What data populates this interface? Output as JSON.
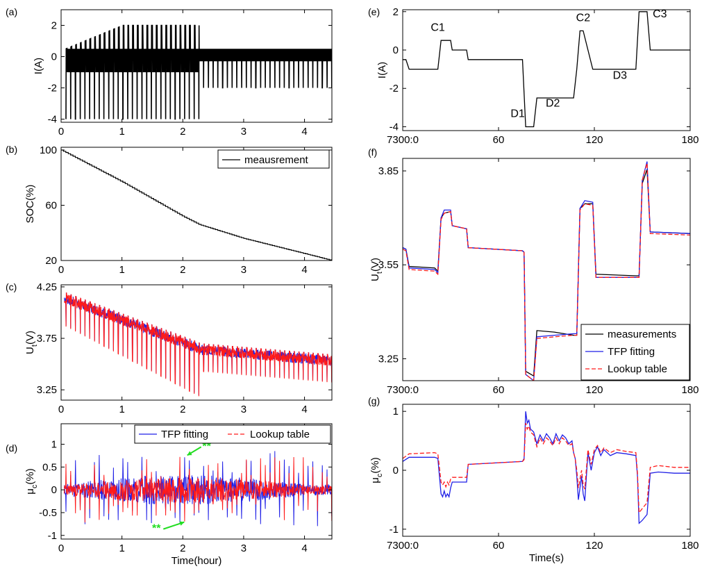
{
  "colors": {
    "measurement": "#000000",
    "tfp": "#1f1fe6",
    "lookup": "#ff1a1a",
    "annotation": "#22dd22"
  },
  "chart_data": [
    {
      "id": "a",
      "panel_label": "(a)",
      "type": "line",
      "ylabel": "I(A)",
      "xlabel": "",
      "xlim": [
        0,
        4.45
      ],
      "ylim": [
        -4.2,
        3
      ],
      "xticks": [
        0,
        1,
        2,
        3,
        4
      ],
      "xtick_labels": [
        "0",
        "1",
        "2",
        "3",
        "4"
      ],
      "yticks": [
        -4,
        -2,
        0,
        2
      ],
      "ytick_labels": [
        "-4",
        "-2",
        "0",
        "2"
      ],
      "pulse_params": {
        "phase1_end_hour": 2.27,
        "discharge_peak_A": -4,
        "charge_peak_A": [
          0.5,
          2
        ],
        "base_A": [
          -1,
          0.5
        ],
        "phase2_discharge_A": -2,
        "phase2_charge_A": [
          0,
          0.5
        ]
      },
      "series": [
        {
          "name": "",
          "color_key": "measurement"
        }
      ]
    },
    {
      "id": "b",
      "panel_label": "(b)",
      "type": "line",
      "ylabel": "SOC(%)",
      "xlabel": "",
      "xlim": [
        0,
        4.45
      ],
      "ylim": [
        20,
        102
      ],
      "xticks": [
        0,
        1,
        2,
        3,
        4
      ],
      "xtick_labels": [
        "0",
        "1",
        "2",
        "3",
        "4"
      ],
      "yticks": [
        20,
        60,
        100
      ],
      "ytick_labels": [
        "20",
        "60",
        "100"
      ],
      "legend": {
        "position": "top-right",
        "entries": [
          "meausrement"
        ]
      },
      "series": [
        {
          "name": "meausrement",
          "color_key": "measurement",
          "x": [
            0,
            1.0,
            2.0,
            2.27,
            3.0,
            4.0,
            4.45
          ],
          "y": [
            100,
            77,
            52,
            46,
            36,
            25,
            20
          ]
        }
      ]
    },
    {
      "id": "c",
      "panel_label": "(c)",
      "type": "line",
      "ylabel": "U",
      "ylabel_sub": "t",
      "ylabel_unit": "(V)",
      "xlabel": "",
      "xlim": [
        0,
        4.45
      ],
      "ylim": [
        3.15,
        4.27
      ],
      "xticks": [
        0,
        1,
        2,
        3,
        4
      ],
      "xtick_labels": [
        "0",
        "1",
        "2",
        "3",
        "4"
      ],
      "yticks": [
        3.25,
        3.75,
        4.25
      ],
      "ytick_labels": [
        "3.25",
        "3.75",
        "4.25"
      ],
      "series": [
        {
          "name": "",
          "color_key": "lookup"
        }
      ]
    },
    {
      "id": "d",
      "panel_label": "(d)",
      "type": "line",
      "ylabel": "μ",
      "ylabel_sub": "c",
      "ylabel_unit": "(%)",
      "xlabel": "Time(hour)",
      "xlim": [
        0,
        4.45
      ],
      "ylim": [
        -1.08,
        1.45
      ],
      "xticks": [
        0,
        1,
        2,
        3,
        4
      ],
      "xtick_labels": [
        "0",
        "1",
        "2",
        "3",
        "4"
      ],
      "yticks": [
        -1,
        -0.5,
        0,
        0.5,
        1
      ],
      "ytick_labels": [
        "-1",
        "-0.5",
        "0",
        "0.5",
        "1"
      ],
      "legend": {
        "position": "top-right",
        "entries": [
          "TFP fitting",
          "Lookup table"
        ]
      },
      "annotations": [
        {
          "text": "**",
          "x": 2.05,
          "y": 0.85
        },
        {
          "text": "**",
          "x": 2.0,
          "y": -0.8
        }
      ],
      "series": [
        {
          "name": "TFP fitting",
          "color_key": "tfp"
        },
        {
          "name": "Lookup table",
          "color_key": "lookup"
        }
      ]
    },
    {
      "id": "e",
      "panel_label": "(e)",
      "type": "line",
      "ylabel": "I(A)",
      "xlabel": "",
      "xlim": [
        0,
        180
      ],
      "ylim": [
        -4.2,
        2.1
      ],
      "xticks": [
        0,
        60,
        120,
        180
      ],
      "xtick_labels": [
        "7300:0",
        "60",
        "120",
        "180"
      ],
      "yticks": [
        -4,
        -2,
        0,
        2
      ],
      "ytick_labels": [
        "-4",
        "-2",
        "0",
        "2"
      ],
      "annotations": [
        {
          "text": "C1",
          "x": 22,
          "y": 1.0
        },
        {
          "text": "D1",
          "x": 72,
          "y": -3.5
        },
        {
          "text": "D2",
          "x": 94,
          "y": -2.95
        },
        {
          "text": "C2",
          "x": 113,
          "y": 1.5
        },
        {
          "text": "D3",
          "x": 136,
          "y": -1.5
        },
        {
          "text": "C3",
          "x": 161,
          "y": 1.7
        }
      ],
      "series": [
        {
          "name": "",
          "color_key": "measurement",
          "x": [
            0,
            2,
            4,
            22,
            24,
            30,
            31,
            40,
            41,
            75,
            77,
            82,
            84,
            107,
            109,
            111,
            113,
            119,
            121,
            146,
            148,
            153,
            155,
            180
          ],
          "y": [
            -0.5,
            -0.5,
            -1,
            -1,
            0.5,
            0.5,
            0,
            0,
            -0.5,
            -0.5,
            -4,
            -4,
            -2.5,
            -2.5,
            -1,
            1,
            1,
            -1,
            -1,
            -1,
            2,
            2,
            0,
            0
          ]
        }
      ]
    },
    {
      "id": "f",
      "panel_label": "(f)",
      "type": "line",
      "ylabel": "U",
      "ylabel_sub": "t",
      "ylabel_unit": "(V)",
      "xlabel": "",
      "xlim": [
        0,
        180
      ],
      "ylim": [
        3.18,
        3.89
      ],
      "xticks": [
        0,
        60,
        120,
        180
      ],
      "xtick_labels": [
        "7300:0",
        "60",
        "120",
        "180"
      ],
      "yticks": [
        3.25,
        3.55,
        3.85
      ],
      "ytick_labels": [
        "3.25",
        "3.55",
        "3.85"
      ],
      "legend": {
        "position": "bottom-right",
        "entries": [
          "measurements",
          "TFP fitting",
          "Lookup table"
        ]
      },
      "series": [
        {
          "name": "measurements",
          "color_key": "measurement",
          "x": [
            0,
            2,
            4,
            20,
            22,
            24,
            26,
            30,
            31,
            40,
            41,
            75,
            76,
            77,
            82,
            84,
            95,
            107,
            109,
            111,
            114,
            119,
            121,
            146,
            148,
            150,
            153,
            155,
            180
          ],
          "y": [
            3.605,
            3.6,
            3.545,
            3.54,
            3.53,
            3.7,
            3.715,
            3.72,
            3.675,
            3.665,
            3.605,
            3.595,
            3.59,
            3.21,
            3.195,
            3.34,
            3.335,
            3.325,
            3.325,
            3.73,
            3.745,
            3.745,
            3.52,
            3.515,
            3.515,
            3.81,
            3.855,
            3.655,
            3.65
          ]
        },
        {
          "name": "TFP fitting",
          "color_key": "tfp",
          "x": [
            0,
            2,
            4,
            20,
            22,
            24,
            26,
            30,
            31,
            40,
            41,
            75,
            76,
            77,
            82,
            84,
            95,
            107,
            109,
            111,
            114,
            119,
            121,
            146,
            148,
            150,
            153,
            155,
            180
          ],
          "y": [
            3.605,
            3.6,
            3.54,
            3.535,
            3.525,
            3.7,
            3.725,
            3.725,
            3.675,
            3.665,
            3.605,
            3.595,
            3.59,
            3.2,
            3.18,
            3.32,
            3.325,
            3.33,
            3.33,
            3.73,
            3.755,
            3.75,
            3.51,
            3.51,
            3.51,
            3.82,
            3.88,
            3.655,
            3.65
          ]
        },
        {
          "name": "Lookup table",
          "color_key": "lookup",
          "x": [
            0,
            2,
            4,
            20,
            22,
            24,
            26,
            30,
            31,
            40,
            41,
            75,
            76,
            77,
            82,
            84,
            95,
            107,
            109,
            111,
            114,
            119,
            121,
            146,
            148,
            150,
            153,
            155,
            180
          ],
          "y": [
            3.6,
            3.595,
            3.535,
            3.53,
            3.52,
            3.695,
            3.715,
            3.72,
            3.675,
            3.665,
            3.605,
            3.595,
            3.59,
            3.2,
            3.18,
            3.315,
            3.32,
            3.325,
            3.325,
            3.725,
            3.745,
            3.74,
            3.51,
            3.51,
            3.51,
            3.82,
            3.875,
            3.65,
            3.645
          ]
        }
      ]
    },
    {
      "id": "g",
      "panel_label": "(g)",
      "type": "line",
      "ylabel": "μ",
      "ylabel_sub": "c",
      "ylabel_unit": "(%)",
      "xlabel": "Time(s)",
      "xlim": [
        0,
        180
      ],
      "ylim": [
        -1.12,
        1.12
      ],
      "xticks": [
        0,
        60,
        120,
        180
      ],
      "xtick_labels": [
        "7300:0",
        "60",
        "120",
        "180"
      ],
      "yticks": [
        -1,
        0,
        1
      ],
      "ytick_labels": [
        "-1",
        "0",
        "1"
      ],
      "series": [
        {
          "name": "TFP fitting",
          "color_key": "tfp",
          "x": [
            0,
            4,
            20,
            22,
            24,
            25,
            26,
            27,
            28,
            29,
            30,
            31,
            40,
            41,
            75,
            76,
            77,
            78,
            79,
            80,
            82,
            84,
            86,
            88,
            90,
            92,
            94,
            96,
            98,
            100,
            102,
            104,
            106,
            107,
            108,
            109,
            110,
            111,
            112,
            113,
            114,
            116,
            118,
            120,
            122,
            124,
            126,
            130,
            134,
            140,
            146,
            147,
            148,
            150,
            153,
            155,
            160,
            170,
            180
          ],
          "y": [
            0.15,
            0.22,
            0.22,
            0.2,
            -0.4,
            -0.45,
            -0.35,
            -0.45,
            -0.4,
            -0.45,
            -0.3,
            -0.2,
            -0.2,
            0.1,
            0.15,
            0.2,
            1.0,
            0.8,
            0.85,
            0.7,
            0.65,
            0.45,
            0.6,
            0.5,
            0.62,
            0.55,
            0.45,
            0.62,
            0.5,
            0.6,
            0.55,
            0.45,
            0.5,
            0.3,
            0.2,
            -0.1,
            -0.5,
            -0.3,
            -0.1,
            -0.4,
            -0.52,
            0.3,
            0.0,
            0.3,
            0.4,
            0.25,
            0.35,
            0.25,
            0.3,
            0.28,
            0.25,
            -0.1,
            -0.9,
            -0.85,
            -0.75,
            -0.05,
            -0.03,
            -0.05,
            -0.05
          ]
        },
        {
          "name": "Lookup table",
          "color_key": "lookup",
          "x": [
            0,
            4,
            20,
            22,
            24,
            25,
            26,
            27,
            28,
            29,
            30,
            31,
            40,
            41,
            75,
            76,
            77,
            78,
            79,
            80,
            82,
            84,
            86,
            88,
            90,
            92,
            94,
            96,
            98,
            100,
            102,
            104,
            106,
            107,
            108,
            109,
            110,
            111,
            112,
            113,
            114,
            116,
            118,
            120,
            122,
            124,
            126,
            130,
            134,
            140,
            146,
            147,
            148,
            150,
            153,
            155,
            160,
            170,
            180
          ],
          "y": [
            0.2,
            0.28,
            0.3,
            0.28,
            -0.2,
            -0.25,
            -0.2,
            -0.28,
            -0.2,
            -0.25,
            -0.15,
            -0.12,
            -0.12,
            0.1,
            0.15,
            0.18,
            0.8,
            0.7,
            0.75,
            0.65,
            0.6,
            0.4,
            0.55,
            0.45,
            0.55,
            0.5,
            0.42,
            0.55,
            0.45,
            0.55,
            0.5,
            0.42,
            0.45,
            0.3,
            0.2,
            0.0,
            -0.3,
            -0.15,
            0.0,
            -0.25,
            -0.32,
            0.35,
            0.1,
            0.35,
            0.42,
            0.3,
            0.38,
            0.3,
            0.35,
            0.32,
            0.3,
            -0.05,
            -0.72,
            -0.65,
            -0.55,
            0.05,
            0.08,
            0.05,
            0.05
          ]
        }
      ]
    }
  ]
}
